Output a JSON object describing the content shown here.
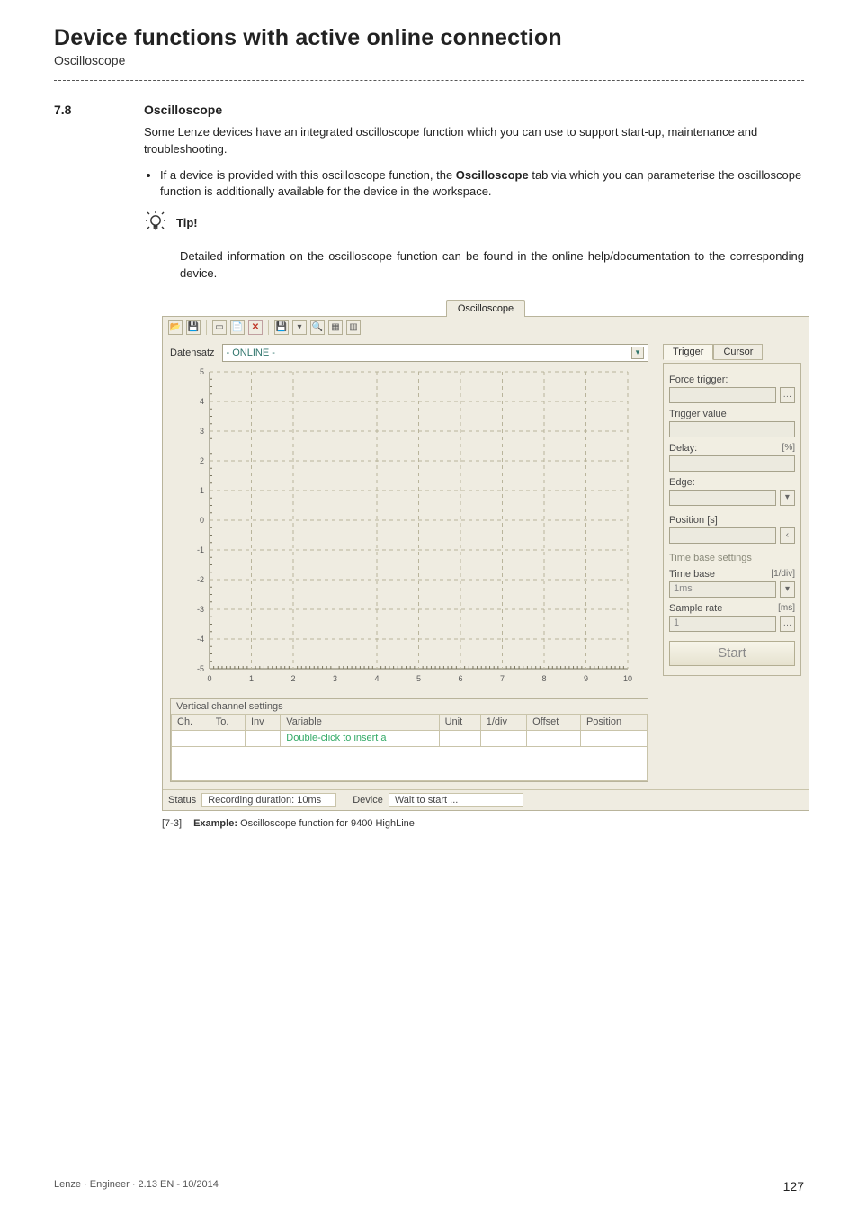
{
  "header": {
    "title": "Device functions with active online connection",
    "subtitle": "Oscilloscope"
  },
  "section": {
    "number": "7.8",
    "title": "Oscilloscope"
  },
  "para1": "Some Lenze devices have an integrated oscilloscope function which you can use to support start-up, maintenance and troubleshooting.",
  "bullet1_pre": "If a device is provided with this oscilloscope function, the ",
  "bullet1_bold": "Oscilloscope",
  "bullet1_post": " tab via which you can parameterise the oscilloscope function is additionally available for the device in the workspace.",
  "tip": {
    "label": "Tip!",
    "text": "Detailed information on the oscilloscope function can be found in the online help/documentation to the corresponding device."
  },
  "shot": {
    "window_tab": "Oscilloscope",
    "toolbar_icons": [
      "open",
      "save",
      "sep",
      "new",
      "copy",
      "delete",
      "sep",
      "cfg",
      "caret",
      "zoom",
      "grid",
      "grid2"
    ],
    "datensatz_label": "Datensatz",
    "datensatz_value": "- ONLINE -",
    "right": {
      "tabs": [
        "Trigger",
        "Cursor"
      ],
      "force_trigger": "Force trigger:",
      "trigger_value": "Trigger value",
      "delay": "Delay:",
      "delay_unit": "[%]",
      "edge": "Edge:",
      "position": "Position [s]",
      "timebase_section": "Time base settings",
      "timebase": "Time base",
      "timebase_unit": "[1/div]",
      "timebase_value": "1ms",
      "samplerate": "Sample rate",
      "samplerate_unit": "[ms]",
      "samplerate_value": "1",
      "start": "Start"
    },
    "vch": {
      "title": "Vertical channel settings",
      "cols": [
        "Ch.",
        "To.",
        "Inv",
        "Variable",
        "Unit",
        "1/div",
        "Offset",
        "Position"
      ],
      "row_msg": "Double-click to insert a"
    },
    "status": {
      "label1": "Status",
      "val1": "Recording duration: 10ms",
      "label2": "Device",
      "val2": "Wait to start ..."
    },
    "axes": {
      "y": {
        "min": -5,
        "max": 5,
        "step": 1
      },
      "x": {
        "min": 0,
        "max": 10,
        "step": 1
      },
      "grid_color": "#b9b49b",
      "bg": "#efece1"
    }
  },
  "caption": {
    "tag": "[7-3]",
    "label": "Example:",
    "text": "Oscilloscope function for 9400 HighLine"
  },
  "footer": {
    "left": "Lenze · Engineer · 2.13 EN - 10/2014",
    "page": "127"
  }
}
